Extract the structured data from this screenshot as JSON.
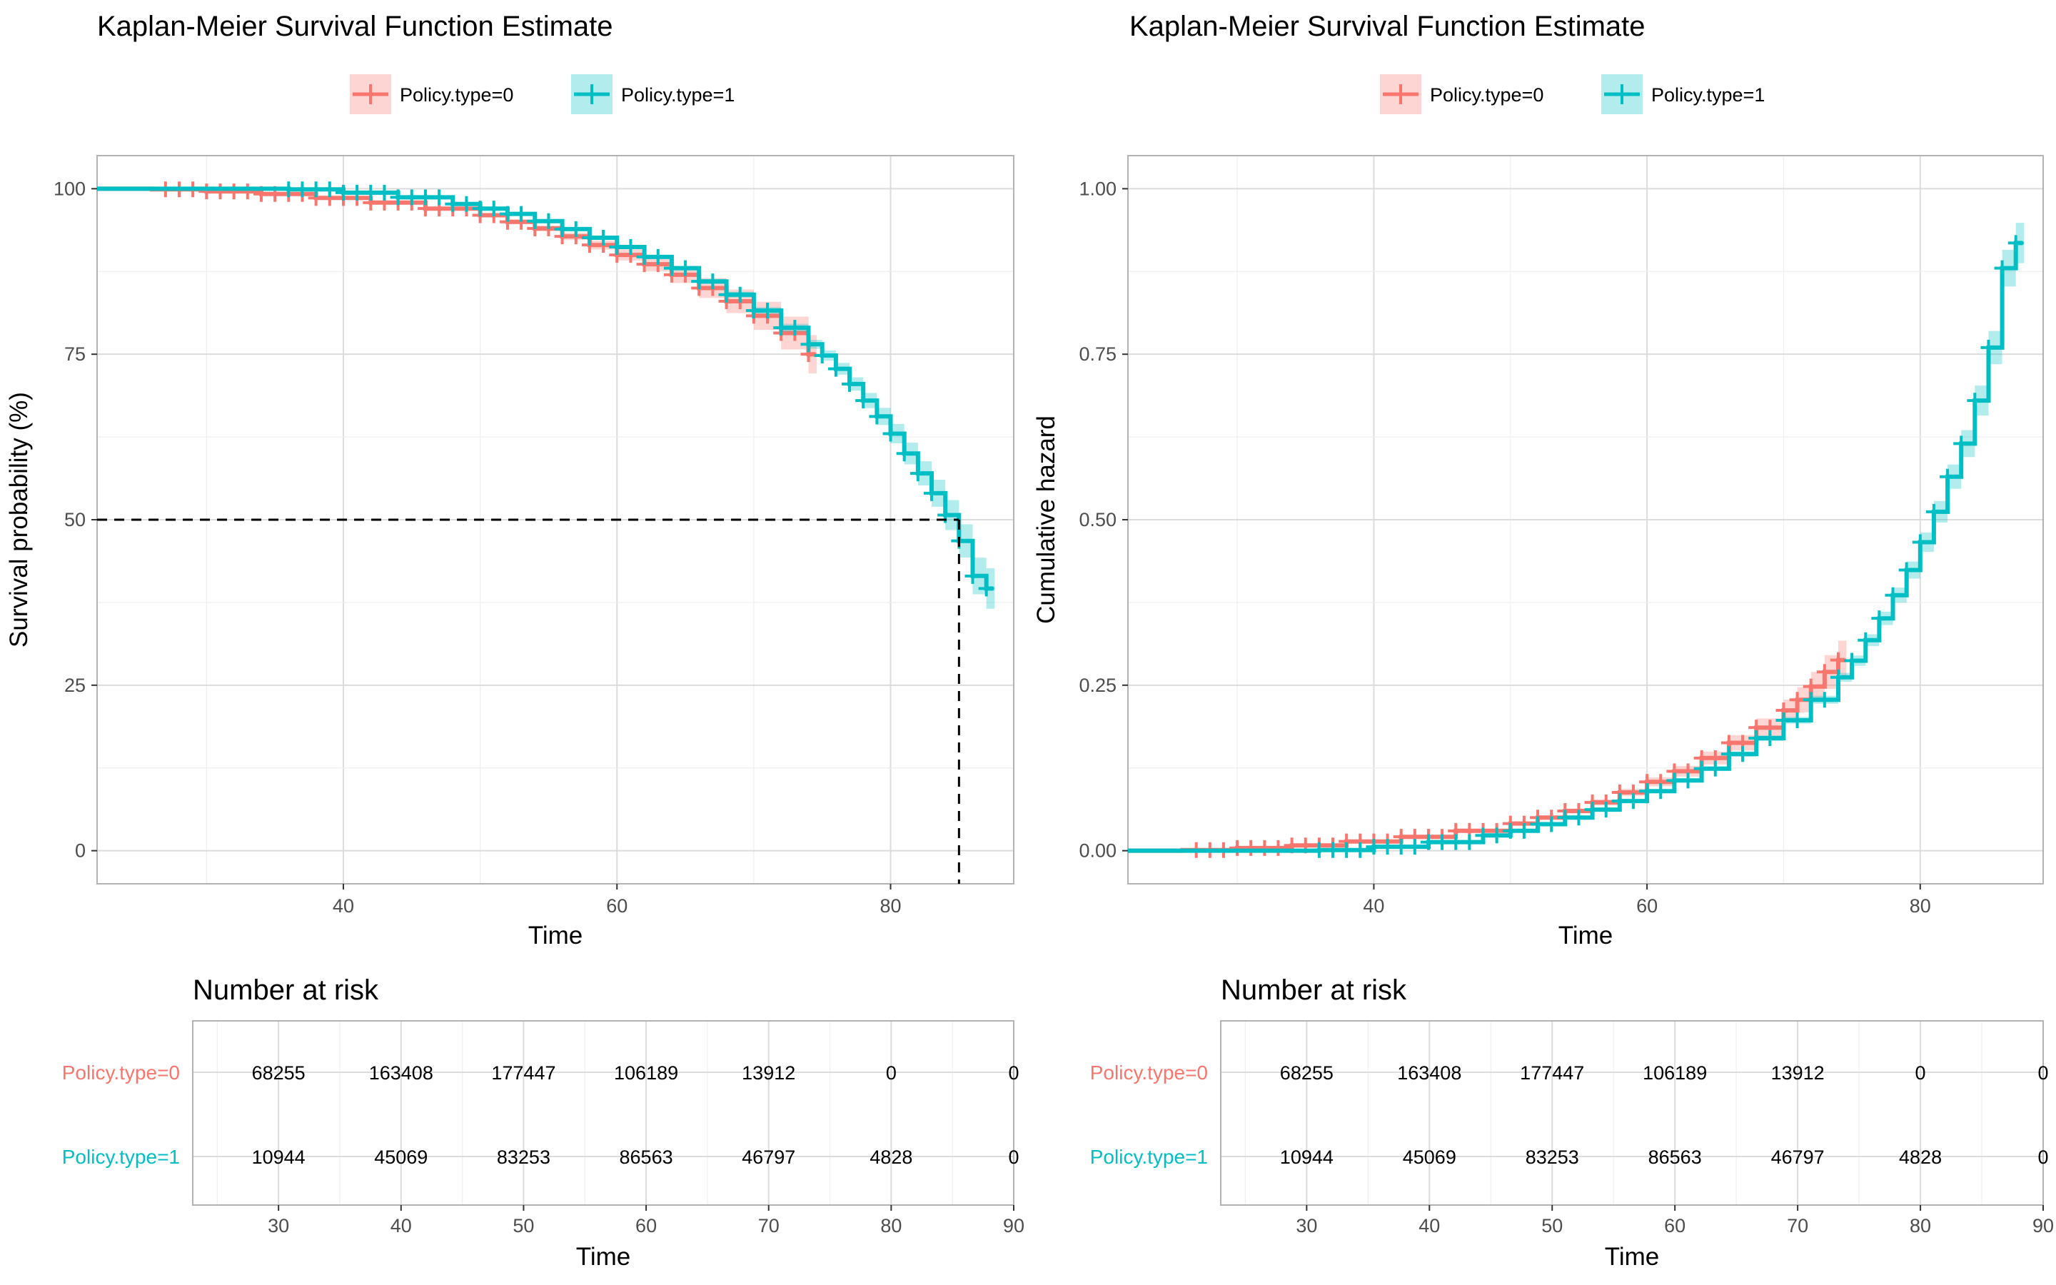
{
  "colors": {
    "group0": "#F8766D",
    "group1": "#00BFC4",
    "panel_border": "#B3B3B3",
    "grid_major": "#DCDCDC",
    "grid_minor": "#EFEFEF",
    "tick_text": "#4D4D4D"
  },
  "legend": {
    "labels": [
      "Policy.type=0",
      "Policy.type=1"
    ],
    "placement": "top"
  },
  "chart_data": [
    {
      "type": "line",
      "step": true,
      "title": "Kaplan-Meier Survival Function Estimate",
      "xlabel": "Time",
      "ylabel": "Survival probability (%)",
      "xlim": [
        22,
        89
      ],
      "ylim": [
        -5,
        105
      ],
      "x_ticks": [
        40,
        60,
        80
      ],
      "y_ticks": [
        0,
        25,
        50,
        75,
        100
      ],
      "grid": true,
      "median_line": {
        "y": 50,
        "x": 85
      },
      "series": [
        {
          "name": "Policy.type=0",
          "x": [
            22,
            26,
            30,
            34,
            38,
            42,
            46,
            50,
            52,
            54,
            56,
            58,
            60,
            62,
            64,
            66,
            68,
            70,
            72,
            74
          ],
          "y": [
            100,
            99.9,
            99.6,
            99.2,
            98.6,
            97.9,
            97.0,
            96.0,
            95.0,
            94.0,
            92.8,
            91.5,
            90.0,
            88.6,
            87.0,
            85.0,
            83.0,
            80.8,
            78.2,
            75.0
          ],
          "censor_x": [
            27,
            28,
            29,
            30,
            31,
            32,
            33,
            34,
            35,
            36,
            37,
            38,
            39,
            40,
            41,
            42,
            43,
            44,
            45,
            46,
            47,
            48,
            49,
            50,
            51,
            52,
            53,
            54,
            55,
            56,
            57,
            58,
            59,
            60,
            61,
            62,
            63,
            64,
            65,
            66,
            67,
            68,
            69,
            70,
            71,
            72,
            73,
            74
          ]
        },
        {
          "name": "Policy.type=1",
          "x": [
            22,
            36,
            40,
            44,
            48,
            50,
            52,
            54,
            56,
            58,
            60,
            62,
            64,
            66,
            68,
            70,
            72,
            74,
            75,
            76,
            77,
            78,
            79,
            80,
            81,
            82,
            83,
            84,
            85,
            86,
            87
          ],
          "y": [
            100,
            99.9,
            99.4,
            98.7,
            97.7,
            97.0,
            96.2,
            95.1,
            93.9,
            92.6,
            91.2,
            89.7,
            88.0,
            86.0,
            84.0,
            81.6,
            79.0,
            76.5,
            74.8,
            72.8,
            70.5,
            68.0,
            65.6,
            63.0,
            60.0,
            57.0,
            54.0,
            50.7,
            46.8,
            41.5,
            39.6
          ],
          "censor_x": [
            36,
            37,
            38,
            39,
            40,
            41,
            42,
            43,
            44,
            45,
            46,
            47,
            48,
            49,
            50,
            51,
            52,
            53,
            54,
            55,
            56,
            57,
            58,
            59,
            60,
            61,
            62,
            63,
            64,
            65,
            66,
            67,
            68,
            69,
            70,
            71,
            72,
            73,
            74,
            75,
            76,
            77,
            78,
            79,
            80,
            81,
            82,
            83,
            84,
            85,
            86,
            87
          ]
        }
      ]
    },
    {
      "type": "line",
      "step": true,
      "title": "Kaplan-Meier Survival Function Estimate",
      "xlabel": "Time",
      "ylabel": "Cumulative hazard",
      "xlim": [
        22,
        89
      ],
      "ylim": [
        -0.05,
        1.05
      ],
      "x_ticks": [
        40,
        60,
        80
      ],
      "y_ticks": [
        0.0,
        0.25,
        0.5,
        0.75,
        1.0
      ],
      "y_tick_labels": [
        "0.00",
        "0.25",
        "0.50",
        "0.75",
        "1.00"
      ],
      "grid": true,
      "series": [
        {
          "name": "Policy.type=0",
          "x": [
            22,
            26,
            30,
            34,
            38,
            42,
            46,
            50,
            52,
            54,
            56,
            58,
            60,
            62,
            64,
            66,
            68,
            70,
            71,
            72,
            73,
            74
          ],
          "y": [
            0.0,
            0.001,
            0.004,
            0.008,
            0.014,
            0.021,
            0.03,
            0.041,
            0.05,
            0.06,
            0.073,
            0.088,
            0.104,
            0.12,
            0.14,
            0.163,
            0.186,
            0.212,
            0.228,
            0.248,
            0.27,
            0.288
          ],
          "censor_x": [
            27,
            28,
            29,
            30,
            31,
            32,
            33,
            34,
            35,
            36,
            37,
            38,
            39,
            40,
            41,
            42,
            43,
            44,
            45,
            46,
            47,
            48,
            49,
            50,
            51,
            52,
            53,
            54,
            55,
            56,
            57,
            58,
            59,
            60,
            61,
            62,
            63,
            64,
            65,
            66,
            67,
            68,
            69,
            70,
            71,
            72,
            73,
            74
          ]
        },
        {
          "name": "Policy.type=1",
          "x": [
            22,
            36,
            40,
            44,
            48,
            50,
            52,
            54,
            56,
            58,
            60,
            62,
            64,
            66,
            68,
            70,
            72,
            74,
            75,
            76,
            77,
            78,
            79,
            80,
            81,
            82,
            83,
            84,
            85,
            86,
            87
          ],
          "y": [
            0.0,
            0.001,
            0.006,
            0.013,
            0.023,
            0.03,
            0.04,
            0.05,
            0.062,
            0.075,
            0.09,
            0.106,
            0.124,
            0.146,
            0.17,
            0.197,
            0.228,
            0.262,
            0.287,
            0.318,
            0.351,
            0.386,
            0.424,
            0.466,
            0.512,
            0.565,
            0.615,
            0.68,
            0.76,
            0.88,
            0.918
          ],
          "censor_x": [
            36,
            37,
            38,
            39,
            40,
            41,
            42,
            43,
            44,
            45,
            46,
            47,
            48,
            49,
            50,
            51,
            52,
            53,
            54,
            55,
            56,
            57,
            58,
            59,
            60,
            61,
            62,
            63,
            64,
            65,
            66,
            67,
            68,
            69,
            70,
            71,
            72,
            73,
            74,
            75,
            76,
            77,
            78,
            79,
            80,
            81,
            82,
            83,
            84,
            85,
            86,
            87
          ]
        }
      ]
    }
  ],
  "risk_table": {
    "title": "Number at risk",
    "xlabel": "Time",
    "xlim": [
      23,
      90
    ],
    "x_ticks": [
      30,
      40,
      50,
      60,
      70,
      80,
      90
    ],
    "rows": [
      {
        "name": "Policy.type=0",
        "values": [
          "68255",
          "163408",
          "177447",
          "106189",
          "13912",
          "0",
          "0"
        ]
      },
      {
        "name": "Policy.type=1",
        "values": [
          "10944",
          "45069",
          "83253",
          "86563",
          "46797",
          "4828",
          "0"
        ]
      }
    ]
  }
}
